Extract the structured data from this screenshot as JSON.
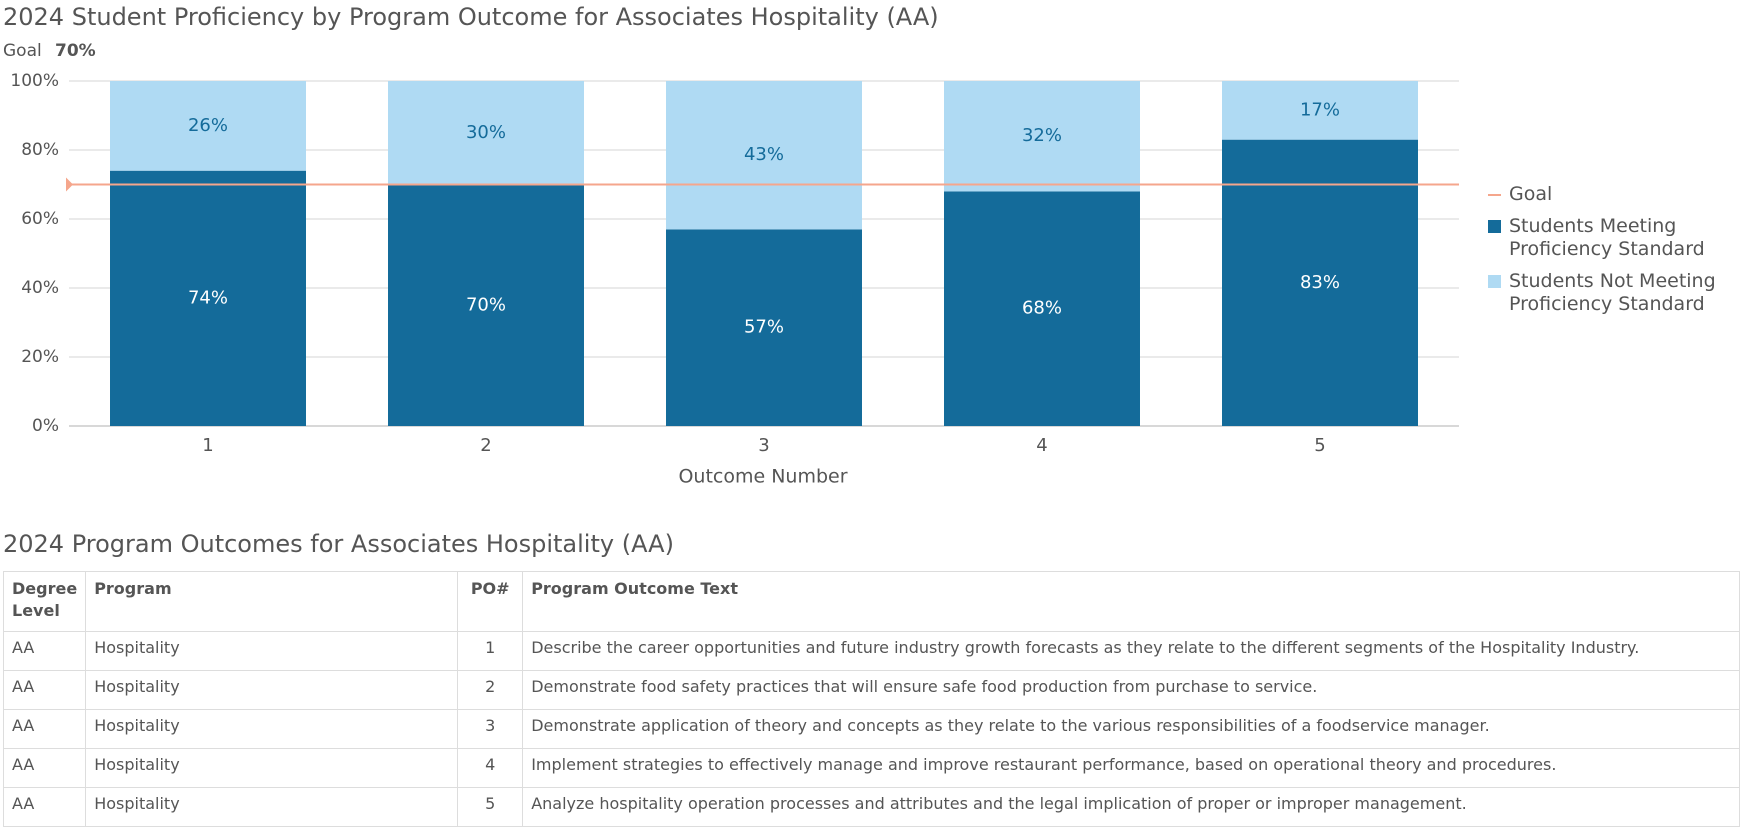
{
  "chart_data": {
    "type": "stacked_bar",
    "title": "2024 Student Proficiency by Program Outcome for Associates Hospitality (AA)",
    "goal": {
      "label": "Goal",
      "value": 70,
      "value_label": "70%",
      "color": "#f5a68c"
    },
    "x_label": "Outcome Number",
    "categories": [
      "1",
      "2",
      "3",
      "4",
      "5"
    ],
    "series": [
      {
        "name": "Students Meeting Proficiency Standard",
        "color": "#146b9a",
        "label_color": "#ffffff",
        "values": [
          74,
          70,
          57,
          68,
          83
        ],
        "value_labels": [
          "74%",
          "70%",
          "57%",
          "68%",
          "83%"
        ]
      },
      {
        "name": "Students Not Meeting Proficiency Standard",
        "color": "#afdaf3",
        "label_color": "#146b9a",
        "values": [
          26,
          30,
          43,
          32,
          17
        ],
        "value_labels": [
          "26%",
          "30%",
          "43%",
          "32%",
          "17%"
        ]
      }
    ],
    "ylim": [
      0,
      100
    ],
    "yticks": [
      {
        "value": 0,
        "label": "0%"
      },
      {
        "value": 20,
        "label": "20%"
      },
      {
        "value": 40,
        "label": "40%"
      },
      {
        "value": 60,
        "label": "60%"
      },
      {
        "value": 80,
        "label": "80%"
      },
      {
        "value": 100,
        "label": "100%"
      }
    ],
    "grid": true,
    "legend": "right"
  },
  "table": {
    "title": "2024 Program Outcomes for Associates Hospitality (AA)",
    "header": [
      "Degree Level",
      "Program",
      "PO#",
      "Program Outcome Text"
    ],
    "rows": [
      [
        "AA",
        "Hospitality",
        1,
        "Describe the career opportunities and future industry growth forecasts as they relate to the different segments of the Hospitality Industry."
      ],
      [
        "AA",
        "Hospitality",
        2,
        "Demonstrate food safety practices that will ensure safe food production from purchase to service."
      ],
      [
        "AA",
        "Hospitality",
        3,
        "Demonstrate application of theory and concepts as they relate to the various responsibilities of a foodservice manager."
      ],
      [
        "AA",
        "Hospitality",
        4,
        "Implement strategies to effectively manage and improve restaurant performance, based on operational theory and procedures."
      ],
      [
        "AA",
        "Hospitality",
        5,
        "Analyze hospitality operation processes and attributes and the legal implication of proper or improper management."
      ]
    ]
  }
}
